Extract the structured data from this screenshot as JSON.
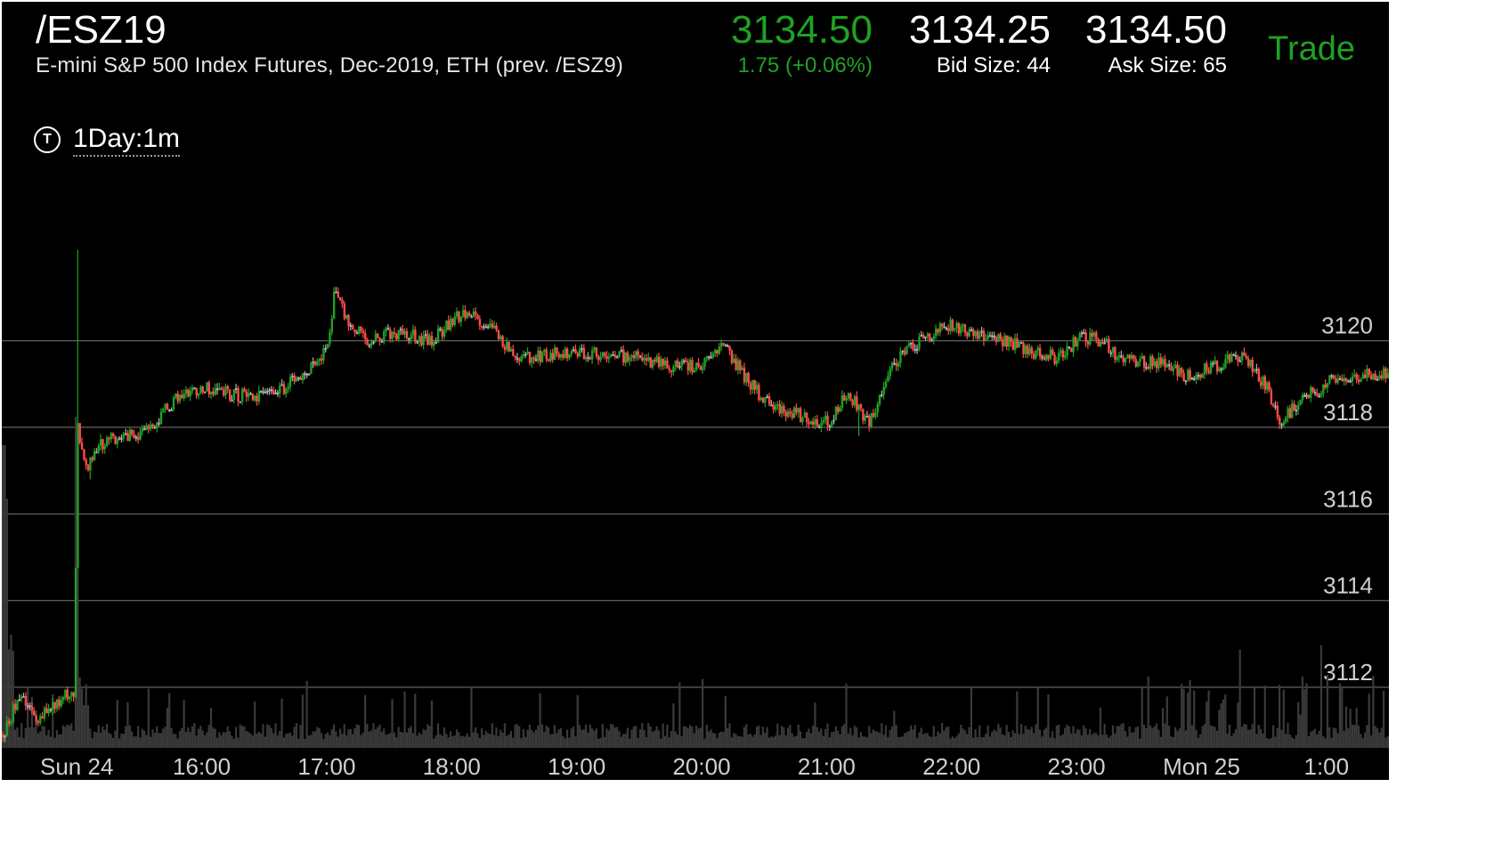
{
  "header": {
    "symbol": "/ESZ19",
    "description": "E-mini S&P 500 Index Futures, Dec-2019, ETH (prev. /ESZ9)",
    "last": "3134.50",
    "change": "1.75 (+0.06%)",
    "bid": "3134.25",
    "bid_size": "Bid Size: 44",
    "ask": "3134.50",
    "ask_size": "Ask Size: 65",
    "trade_label": "Trade"
  },
  "toolbar": {
    "timeframe_icon": "T",
    "timeframe_label": "1Day:1m"
  },
  "colors": {
    "background": "#000000",
    "up": "#1fa224",
    "down": "#ff4a4a",
    "neutral": "#b0b0b0",
    "grid": "#5a5a5a",
    "volume": "#3a3a3a",
    "change_text": "#1fa224"
  },
  "chart_data": {
    "type": "candlestick",
    "title": "",
    "xlabel": "",
    "ylabel": "",
    "y_ticks": [
      3112,
      3114,
      3116,
      3118,
      3120
    ],
    "ylim": [
      3110.6,
      3123.2
    ],
    "x_ticks": [
      "Sun 24",
      "16:00",
      "17:00",
      "18:00",
      "19:00",
      "20:00",
      "21:00",
      "22:00",
      "23:00",
      "Mon 25",
      "1:00"
    ],
    "x_tick_minutes": [
      -30,
      30,
      90,
      150,
      210,
      270,
      330,
      390,
      450,
      510,
      570
    ],
    "xlim_minutes": [
      -66,
      600
    ],
    "grid": true,
    "price_anchors": [
      [
        -66,
        3110.9
      ],
      [
        -58,
        3111.8
      ],
      [
        -50,
        3111.3
      ],
      [
        -42,
        3111.5
      ],
      [
        -36,
        3111.8
      ],
      [
        -32,
        3111.8
      ],
      [
        -30,
        3118.0
      ],
      [
        -26,
        3117.0
      ],
      [
        -20,
        3117.6
      ],
      [
        -10,
        3117.8
      ],
      [
        -4,
        3117.8
      ],
      [
        6,
        3118.0
      ],
      [
        10,
        3118.3
      ],
      [
        20,
        3118.8
      ],
      [
        30,
        3118.9
      ],
      [
        40,
        3118.8
      ],
      [
        55,
        3118.7
      ],
      [
        68,
        3118.9
      ],
      [
        78,
        3119.2
      ],
      [
        90,
        3119.8
      ],
      [
        93,
        3121.1
      ],
      [
        100,
        3120.4
      ],
      [
        110,
        3120.0
      ],
      [
        122,
        3120.2
      ],
      [
        140,
        3120.0
      ],
      [
        150,
        3120.5
      ],
      [
        158,
        3120.6
      ],
      [
        170,
        3120.3
      ],
      [
        180,
        3119.6
      ],
      [
        200,
        3119.7
      ],
      [
        220,
        3119.7
      ],
      [
        240,
        3119.6
      ],
      [
        255,
        3119.4
      ],
      [
        270,
        3119.4
      ],
      [
        280,
        3119.9
      ],
      [
        290,
        3119.2
      ],
      [
        300,
        3118.6
      ],
      [
        310,
        3118.4
      ],
      [
        320,
        3118.2
      ],
      [
        330,
        3118.1
      ],
      [
        340,
        3118.8
      ],
      [
        350,
        3118.1
      ],
      [
        362,
        3119.5
      ],
      [
        374,
        3120.0
      ],
      [
        390,
        3120.4
      ],
      [
        398,
        3120.2
      ],
      [
        410,
        3120.1
      ],
      [
        425,
        3119.8
      ],
      [
        440,
        3119.6
      ],
      [
        452,
        3120.1
      ],
      [
        462,
        3120.0
      ],
      [
        470,
        3119.6
      ],
      [
        480,
        3119.5
      ],
      [
        490,
        3119.5
      ],
      [
        500,
        3119.2
      ],
      [
        510,
        3119.3
      ],
      [
        520,
        3119.5
      ],
      [
        530,
        3119.6
      ],
      [
        540,
        3119.0
      ],
      [
        548,
        3118.1
      ],
      [
        556,
        3118.6
      ],
      [
        566,
        3118.9
      ],
      [
        576,
        3119.2
      ],
      [
        590,
        3119.2
      ],
      [
        600,
        3119.3
      ]
    ],
    "volume_note": "per-bar volume bars along the bottom; large spikes near Sun 24 open"
  }
}
